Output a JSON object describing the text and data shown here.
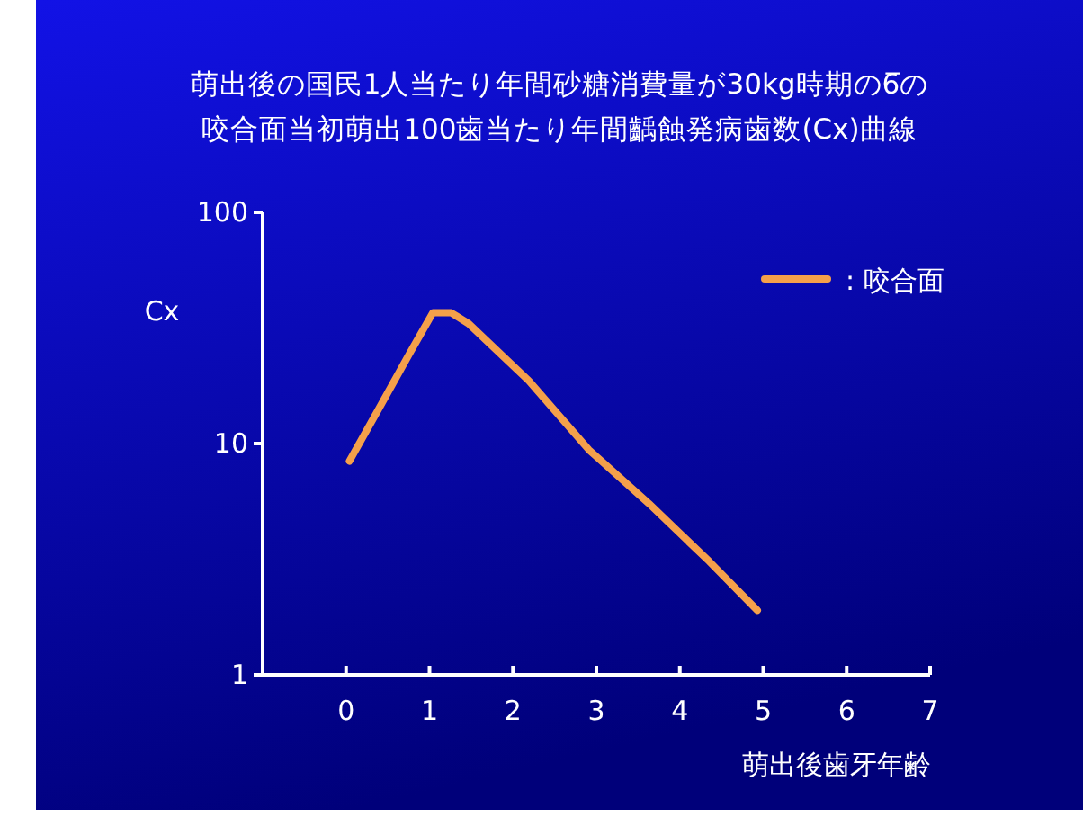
{
  "chart_data": {
    "type": "line",
    "title": "萌出後の国民1人当たり年間砂糖消費量が30kg時期の6̅の",
    "subtitle": "咬合面当初萌出100歯当たり年間齲蝕発病歯数(Cx)曲線",
    "ylabel": "Cx",
    "xlabel": "萌出後歯牙年齢",
    "series": [
      {
        "name": ": 咬合面",
        "color": "#f5a04a",
        "x": [
          0.04,
          0.4,
          0.76,
          1.04,
          1.26,
          1.47,
          2.19,
          2.91,
          3.63,
          4.35,
          4.93
        ],
        "values": [
          8.4,
          14.3,
          24.5,
          36.8,
          36.8,
          33,
          18.7,
          9.4,
          5.5,
          3.1,
          1.9
        ]
      }
    ],
    "xlim": [
      -1,
      7
    ],
    "xticks": [
      0,
      1,
      2,
      3,
      4,
      5,
      6,
      7
    ],
    "ylim": [
      1,
      100
    ],
    "yticks": [
      1,
      10,
      100
    ],
    "log": "y",
    "legend": "top right",
    "grid": false,
    "marker": "none",
    "line_style": "solid"
  }
}
